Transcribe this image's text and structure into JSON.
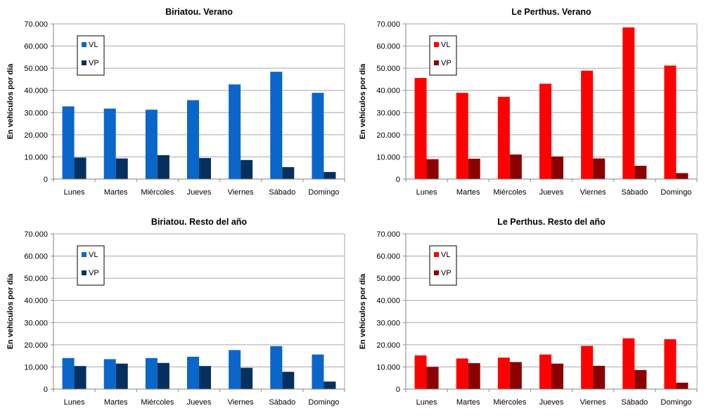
{
  "colors": {
    "blue_vl": "#0a66c8",
    "blue_vp": "#06305e",
    "red_vl": "#ff0000",
    "red_vp": "#8b0000",
    "grid": "#a6a6a6"
  },
  "chart_data": [
    {
      "type": "bar",
      "title": "Biriatou. Verano",
      "ylabel": "En vehículos por día",
      "ylim": [
        0,
        70000
      ],
      "yticks": [
        "0",
        "10.000",
        "20.000",
        "30.000",
        "40.000",
        "50.000",
        "60.000",
        "70.000"
      ],
      "grid": true,
      "legend_position": "top-left",
      "categories": [
        "Lunes",
        "Martes",
        "Miércoles",
        "Jueves",
        "Viernes",
        "Sábado",
        "Domingo"
      ],
      "series": [
        {
          "name": "VL",
          "color": "#0a66c8",
          "values": [
            32800,
            31800,
            31300,
            35600,
            42700,
            48400,
            38900
          ]
        },
        {
          "name": "VP",
          "color": "#06305e",
          "values": [
            9700,
            9300,
            10800,
            9500,
            8600,
            5400,
            3200
          ]
        }
      ]
    },
    {
      "type": "bar",
      "title": "Le Perthus. Verano",
      "ylabel": "En vehículos por día",
      "ylim": [
        0,
        70000
      ],
      "yticks": [
        "0",
        "10.000",
        "20.000",
        "30.000",
        "40.000",
        "50.000",
        "60.000",
        "70.000"
      ],
      "grid": true,
      "legend_position": "top-left",
      "categories": [
        "Lunes",
        "Martes",
        "Miércoles",
        "Jueves",
        "Viernes",
        "Sábado",
        "Domingo"
      ],
      "series": [
        {
          "name": "VL",
          "color": "#ff0000",
          "values": [
            45600,
            38900,
            37100,
            43000,
            48900,
            68400,
            51200
          ]
        },
        {
          "name": "VP",
          "color": "#8b0000",
          "values": [
            9000,
            9200,
            11100,
            10200,
            9300,
            6000,
            2700
          ]
        }
      ]
    },
    {
      "type": "bar",
      "title": "Biriatou. Resto del año",
      "ylabel": "En vehículos por día",
      "ylim": [
        0,
        70000
      ],
      "yticks": [
        "0",
        "10.000",
        "20.000",
        "30.000",
        "40.000",
        "50.000",
        "60.000",
        "70.000"
      ],
      "grid": true,
      "legend_position": "top-left",
      "categories": [
        "Lunes",
        "Martes",
        "Miércoles",
        "Jueves",
        "Viernes",
        "Sábado",
        "Domingo"
      ],
      "series": [
        {
          "name": "VL",
          "color": "#0a66c8",
          "values": [
            14000,
            13500,
            14000,
            14600,
            17600,
            19400,
            15600
          ]
        },
        {
          "name": "VP",
          "color": "#06305e",
          "values": [
            10400,
            11500,
            11800,
            10400,
            9600,
            7800,
            3400
          ]
        }
      ]
    },
    {
      "type": "bar",
      "title": "Le Perthus. Resto del año",
      "ylabel": "En vehículos por día",
      "ylim": [
        0,
        70000
      ],
      "yticks": [
        "0",
        "10.000",
        "20.000",
        "30.000",
        "40.000",
        "50.000",
        "60.000",
        "70.000"
      ],
      "grid": true,
      "legend_position": "top-left",
      "categories": [
        "Lunes",
        "Martes",
        "Miércoles",
        "Jueves",
        "Viernes",
        "Sábado",
        "Domingo"
      ],
      "series": [
        {
          "name": "VL",
          "color": "#ff0000",
          "values": [
            15200,
            13800,
            14200,
            15600,
            19500,
            22900,
            22500
          ]
        },
        {
          "name": "VP",
          "color": "#8b0000",
          "values": [
            10000,
            11700,
            12200,
            11500,
            10500,
            8600,
            2900
          ]
        }
      ]
    }
  ]
}
